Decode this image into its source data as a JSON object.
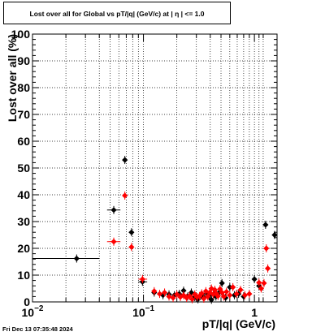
{
  "title": "Lost over all for Global vs pT/|q| (GeV/c) at |  η  | <= 1.0",
  "footer_timestamp": "Fri Dec 13 07:35:48 2024",
  "chart_data": {
    "type": "scatter",
    "title": "Lost over all for Global vs pT/|q| (GeV/c) at |  η  | <= 1.0",
    "xlabel": "pT/|q| (GeV/c)",
    "ylabel": "Lost over all (%)",
    "xscale": "log",
    "xlim": [
      0.01,
      1.6
    ],
    "ylim": [
      0,
      100
    ],
    "grid": true,
    "yticks": [
      "0",
      "10",
      "20",
      "30",
      "40",
      "50",
      "60",
      "70",
      "80",
      "90",
      "100"
    ],
    "xtick_labels": [
      {
        "value": 0.01,
        "base": "10",
        "exp": "−2"
      },
      {
        "value": 0.1,
        "base": "10",
        "exp": "−1"
      },
      {
        "value": 1,
        "base": "1",
        "exp": ""
      }
    ],
    "series": [
      {
        "color": "#000000",
        "points": [
          {
            "x": 0.025,
            "y": 16.2,
            "xerr": [
              0.01,
              0.04
            ]
          },
          {
            "x": 0.054,
            "y": 34.3,
            "xerr": [
              0.047,
              0.062
            ]
          },
          {
            "x": 0.068,
            "y": 53.0
          },
          {
            "x": 0.078,
            "y": 26.0
          },
          {
            "x": 0.098,
            "y": 7.5,
            "xerr": [
              0.09,
              0.108
            ]
          },
          {
            "x": 0.125,
            "y": 3.5
          },
          {
            "x": 0.15,
            "y": 2.5
          },
          {
            "x": 0.17,
            "y": 2.8
          },
          {
            "x": 0.19,
            "y": 2.5
          },
          {
            "x": 0.21,
            "y": 3.0
          },
          {
            "x": 0.23,
            "y": 4.2
          },
          {
            "x": 0.25,
            "y": 2.0
          },
          {
            "x": 0.27,
            "y": 3.5
          },
          {
            "x": 0.29,
            "y": 1.8
          },
          {
            "x": 0.31,
            "y": 1.0
          },
          {
            "x": 0.33,
            "y": 2.5
          },
          {
            "x": 0.35,
            "y": 1.8
          },
          {
            "x": 0.37,
            "y": 3.2
          },
          {
            "x": 0.39,
            "y": 2.2
          },
          {
            "x": 0.41,
            "y": 0.8
          },
          {
            "x": 0.43,
            "y": 2.8
          },
          {
            "x": 0.45,
            "y": 2.0
          },
          {
            "x": 0.48,
            "y": 3.5
          },
          {
            "x": 0.51,
            "y": 7.0
          },
          {
            "x": 0.55,
            "y": 1.5
          },
          {
            "x": 0.6,
            "y": 5.5
          },
          {
            "x": 0.66,
            "y": 2.5
          },
          {
            "x": 0.72,
            "y": 3.0
          },
          {
            "x": 0.8,
            "y": 2.0
          },
          {
            "x": 1.0,
            "y": 8.5
          },
          {
            "x": 1.1,
            "y": 6.0
          },
          {
            "x": 1.26,
            "y": 28.8
          },
          {
            "x": 1.52,
            "y": 25.0
          }
        ]
      },
      {
        "color": "#ff0000",
        "points": [
          {
            "x": 0.054,
            "y": 22.5,
            "xerr": [
              0.047,
              0.062
            ]
          },
          {
            "x": 0.068,
            "y": 39.7
          },
          {
            "x": 0.078,
            "y": 20.5
          },
          {
            "x": 0.098,
            "y": 8.5,
            "xerr": [
              0.09,
              0.108
            ]
          },
          {
            "x": 0.125,
            "y": 4.0
          },
          {
            "x": 0.14,
            "y": 3.0
          },
          {
            "x": 0.155,
            "y": 3.5
          },
          {
            "x": 0.17,
            "y": 2.0
          },
          {
            "x": 0.185,
            "y": 1.5
          },
          {
            "x": 0.2,
            "y": 2.8
          },
          {
            "x": 0.215,
            "y": 1.8
          },
          {
            "x": 0.23,
            "y": 2.5
          },
          {
            "x": 0.245,
            "y": 1.5
          },
          {
            "x": 0.26,
            "y": 2.2
          },
          {
            "x": 0.275,
            "y": 1.0
          },
          {
            "x": 0.29,
            "y": 2.8
          },
          {
            "x": 0.305,
            "y": 1.8
          },
          {
            "x": 0.32,
            "y": 2.2
          },
          {
            "x": 0.335,
            "y": 3.2
          },
          {
            "x": 0.35,
            "y": 1.2
          },
          {
            "x": 0.365,
            "y": 4.0
          },
          {
            "x": 0.38,
            "y": 2.0
          },
          {
            "x": 0.395,
            "y": 3.5
          },
          {
            "x": 0.41,
            "y": 5.0
          },
          {
            "x": 0.425,
            "y": 2.8
          },
          {
            "x": 0.44,
            "y": 4.5
          },
          {
            "x": 0.455,
            "y": 3.0
          },
          {
            "x": 0.47,
            "y": 2.2
          },
          {
            "x": 0.49,
            "y": 4.8
          },
          {
            "x": 0.51,
            "y": 3.5
          },
          {
            "x": 0.53,
            "y": 2.0
          },
          {
            "x": 0.56,
            "y": 3.8
          },
          {
            "x": 0.6,
            "y": 2.5
          },
          {
            "x": 0.64,
            "y": 5.5
          },
          {
            "x": 0.69,
            "y": 3.0
          },
          {
            "x": 0.75,
            "y": 4.5
          },
          {
            "x": 0.82,
            "y": 2.5
          },
          {
            "x": 0.9,
            "y": 3.0
          },
          {
            "x": 1.1,
            "y": 7.2
          },
          {
            "x": 1.15,
            "y": 5.0
          },
          {
            "x": 1.22,
            "y": 7.0
          },
          {
            "x": 1.28,
            "y": 20.0
          },
          {
            "x": 1.32,
            "y": 12.5
          }
        ]
      }
    ]
  }
}
